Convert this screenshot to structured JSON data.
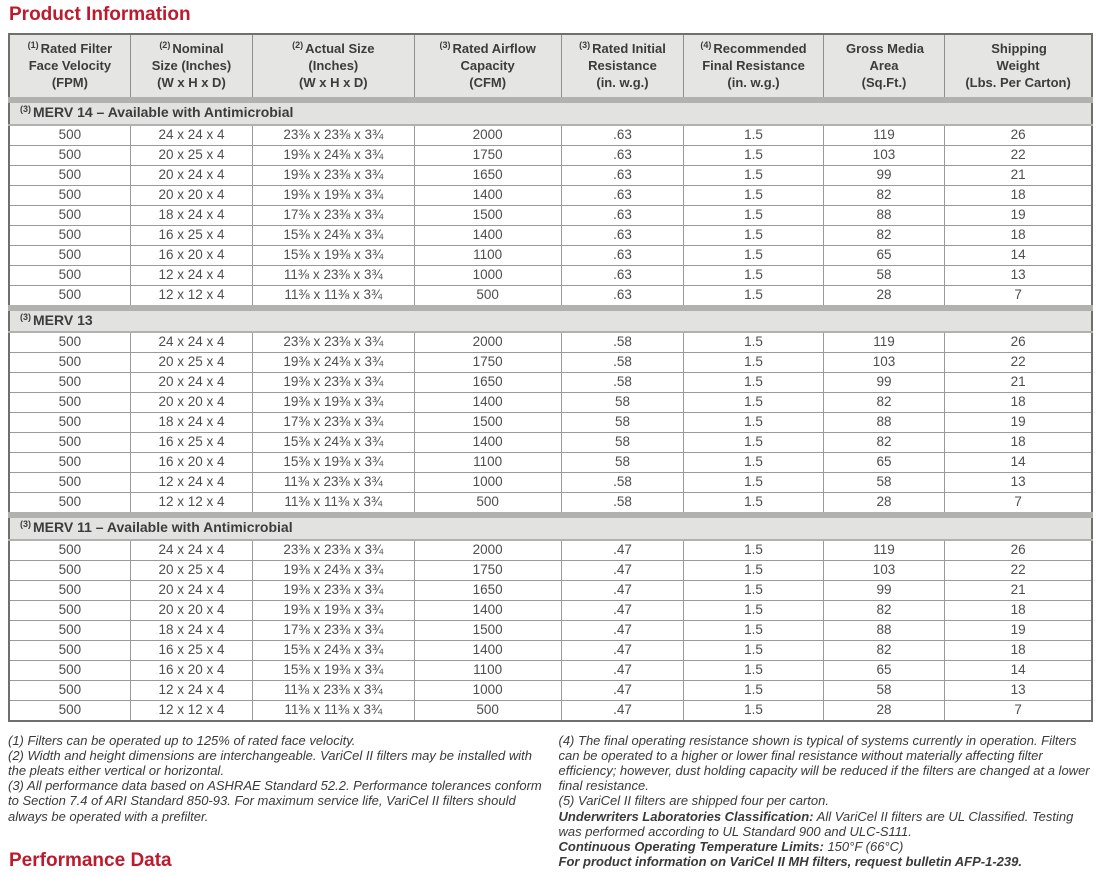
{
  "page": {
    "title": "Product Information",
    "footer_title": "Performance Data",
    "accent_color": "#bd1b2d"
  },
  "table": {
    "columns": [
      {
        "sup": "(1)",
        "label": "Rated Filter\nFace Velocity\n(FPM)"
      },
      {
        "sup": "(2)",
        "label": "Nominal\nSize (Inches)\n(W x H x D)"
      },
      {
        "sup": "(2)",
        "label": "Actual Size\n(Inches)\n(W x H x D)"
      },
      {
        "sup": "(3)",
        "label": "Rated Airflow\nCapacity\n(CFM)"
      },
      {
        "sup": "(3)",
        "label": "Rated Initial\nResistance\n(in. w.g.)"
      },
      {
        "sup": "(4)",
        "label": "Recommended\nFinal Resistance\n(in. w.g.)"
      },
      {
        "sup": "",
        "label": "Gross Media\nArea\n(Sq.Ft.)"
      },
      {
        "sup": "",
        "label": "Shipping\nWeight\n(Lbs. Per Carton)"
      }
    ],
    "column_widths_pct": [
      11.2,
      11.3,
      14.9,
      13.6,
      11.3,
      12.9,
      11.2,
      13.6
    ],
    "sections": [
      {
        "sup": "(3)",
        "title": "MERV 14 – Available with Antimicrobial",
        "rows": [
          [
            "500",
            "24 x 24 x 4",
            "23⅜ x 23⅜ x 3¾",
            "2000",
            ".63",
            "1.5",
            "119",
            "26"
          ],
          [
            "500",
            "20 x 25 x 4",
            "19⅜ x 24⅜ x 3¾",
            "1750",
            ".63",
            "1.5",
            "103",
            "22"
          ],
          [
            "500",
            "20 x 24 x 4",
            "19⅜ x 23⅜ x 3¾",
            "1650",
            ".63",
            "1.5",
            "99",
            "21"
          ],
          [
            "500",
            "20 x 20 x 4",
            "19⅜ x 19⅜ x 3¾",
            "1400",
            ".63",
            "1.5",
            "82",
            "18"
          ],
          [
            "500",
            "18 x 24 x 4",
            "17⅜ x 23⅜ x 3¾",
            "1500",
            ".63",
            "1.5",
            "88",
            "19"
          ],
          [
            "500",
            "16 x 25 x 4",
            "15⅜ x 24⅜ x 3¾",
            "1400",
            ".63",
            "1.5",
            "82",
            "18"
          ],
          [
            "500",
            "16 x 20 x 4",
            "15⅜ x 19⅜ x 3¾",
            "1100",
            ".63",
            "1.5",
            "65",
            "14"
          ],
          [
            "500",
            "12 x 24 x 4",
            "11⅜ x 23⅜ x 3¾",
            "1000",
            ".63",
            "1.5",
            "58",
            "13"
          ],
          [
            "500",
            "12 x 12 x 4",
            "11⅜ x 11⅜ x 3¾",
            "500",
            ".63",
            "1.5",
            "28",
            "7"
          ]
        ]
      },
      {
        "sup": "(3)",
        "title": "MERV 13",
        "rows": [
          [
            "500",
            "24 x 24 x 4",
            "23⅜ x 23⅜ x 3¾",
            "2000",
            ".58",
            "1.5",
            "119",
            "26"
          ],
          [
            "500",
            "20 x 25 x 4",
            "19⅜ x 24⅜ x 3¾",
            "1750",
            ".58",
            "1.5",
            "103",
            "22"
          ],
          [
            "500",
            "20 x 24 x 4",
            "19⅜ x 23⅜ x 3¾",
            "1650",
            ".58",
            "1.5",
            "99",
            "21"
          ],
          [
            "500",
            "20 x 20 x 4",
            "19⅜ x 19⅜ x 3¾",
            "1400",
            "58",
            "1.5",
            "82",
            "18"
          ],
          [
            "500",
            "18 x 24 x 4",
            "17⅜ x 23⅜ x 3¾",
            "1500",
            "58",
            "1.5",
            "88",
            "19"
          ],
          [
            "500",
            "16 x 25 x 4",
            "15⅜ x 24⅜ x 3¾",
            "1400",
            "58",
            "1.5",
            "82",
            "18"
          ],
          [
            "500",
            "16 x 20 x 4",
            "15⅜ x 19⅜ x 3¾",
            "1100",
            "58",
            "1.5",
            "65",
            "14"
          ],
          [
            "500",
            "12 x 24 x 4",
            "11⅜ x 23⅜ x 3¾",
            "1000",
            ".58",
            "1.5",
            "58",
            "13"
          ],
          [
            "500",
            "12 x 12 x 4",
            "11⅜ x 11⅜ x 3¾",
            "500",
            ".58",
            "1.5",
            "28",
            "7"
          ]
        ]
      },
      {
        "sup": "(3)",
        "title": "MERV 11 – Available with Antimicrobial",
        "rows": [
          [
            "500",
            "24 x 24 x 4",
            "23⅜ x 23⅜ x 3¾",
            "2000",
            ".47",
            "1.5",
            "119",
            "26"
          ],
          [
            "500",
            "20 x 25 x 4",
            "19⅜ x 24⅜ x 3¾",
            "1750",
            ".47",
            "1.5",
            "103",
            "22"
          ],
          [
            "500",
            "20 x 24 x 4",
            "19⅜ x 23⅜ x 3¾",
            "1650",
            ".47",
            "1.5",
            "99",
            "21"
          ],
          [
            "500",
            "20 x 20 x 4",
            "19⅜ x 19⅜ x 3¾",
            "1400",
            ".47",
            "1.5",
            "82",
            "18"
          ],
          [
            "500",
            "18 x 24 x 4",
            "17⅜ x 23⅜ x 3¾",
            "1500",
            ".47",
            "1.5",
            "88",
            "19"
          ],
          [
            "500",
            "16 x 25 x 4",
            "15⅜ x 24⅜ x 3¾",
            "1400",
            ".47",
            "1.5",
            "82",
            "18"
          ],
          [
            "500",
            "16 x 20 x 4",
            "15⅜ x 19⅜ x 3¾",
            "1100",
            ".47",
            "1.5",
            "65",
            "14"
          ],
          [
            "500",
            "12 x 24 x 4",
            "11⅜ x 23⅜ x 3¾",
            "1000",
            ".47",
            "1.5",
            "58",
            "13"
          ],
          [
            "500",
            "12 x 12 x 4",
            "11⅜ x 11⅜ x 3¾",
            "500",
            ".47",
            "1.5",
            "28",
            "7"
          ]
        ]
      }
    ]
  },
  "footnotes": {
    "left": [
      "(1) Filters can be operated up to 125% of rated face velocity.",
      "(2) Width and height dimensions are interchangeable. VariCel II filters may be installed with the pleats either vertical or horizontal.",
      "(3) All performance data based on ASHRAE Standard 52.2. Performance tolerances conform to Section 7.4 of ARI Standard 850-93. For maximum service life, VariCel II filters should always be operated with a prefilter."
    ],
    "right": [
      {
        "bold": "",
        "text": "(4) The final operating resistance shown is typical of systems currently in operation. Filters can be operated to a higher or lower final resistance without materially affecting filter efficiency; however, dust holding capacity will be reduced if the filters are changed at a lower final resistance."
      },
      {
        "bold": "",
        "text": "(5) VariCel II filters are shipped four per carton."
      },
      {
        "bold": "Underwriters Laboratories Classification:",
        "text": " All VariCel II filters are UL Classified. Testing was performed according to UL Standard 900 and ULC-S111."
      },
      {
        "bold": "Continuous Operating Temperature Limits:",
        "text": " 150°F (66°C)"
      },
      {
        "bold": "For product information on VariCel II MH filters, request bulletin AFP-1-239.",
        "text": ""
      }
    ]
  }
}
